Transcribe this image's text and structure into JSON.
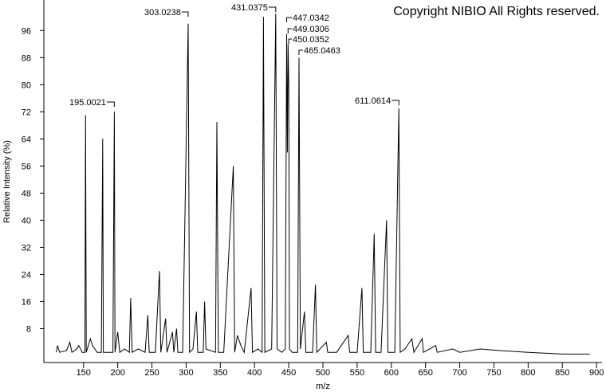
{
  "chart_data": {
    "type": "line",
    "title": "Copyright NIBIO All Rights reserved.",
    "x_label": "m/z",
    "y_label": "Relative Intensity (%)",
    "xlim": [
      92,
      908
    ],
    "ylim": [
      -2,
      105
    ],
    "xticks": [
      150,
      200,
      250,
      300,
      350,
      400,
      450,
      500,
      550,
      600,
      650,
      700,
      750,
      800,
      850,
      900
    ],
    "yticks": [
      8,
      16,
      24,
      32,
      40,
      48,
      56,
      64,
      72,
      80,
      88,
      96
    ],
    "color": "#000000",
    "peak_labels": [
      "195.0021",
      "303.0238",
      "431.0375",
      "447.0342",
      "449.0306",
      "450.0352",
      "465.0463",
      "611.0614"
    ],
    "x": [
      110,
      112,
      115,
      125,
      130,
      133,
      140,
      143,
      148,
      152,
      153,
      154,
      160,
      163,
      170,
      176,
      178,
      179,
      186,
      193,
      195,
      196,
      200,
      203,
      210,
      217,
      219,
      221,
      230,
      240,
      244,
      246,
      255,
      261,
      263,
      270,
      272,
      280,
      282,
      286,
      288,
      295,
      303,
      305,
      310,
      315,
      317,
      325,
      327,
      329,
      343,
      345,
      347,
      355,
      369,
      371,
      375,
      380,
      385,
      395,
      397,
      405,
      411,
      413,
      415,
      425,
      431,
      433,
      440,
      445,
      447,
      448,
      449,
      450,
      451,
      455,
      463,
      465,
      467,
      473,
      475,
      485,
      489,
      491,
      505,
      507,
      520,
      537,
      539,
      550,
      557,
      559,
      570,
      575,
      577,
      585,
      593,
      595,
      605,
      611,
      613,
      620,
      630,
      633,
      645,
      647,
      665,
      667,
      690,
      700,
      730,
      760,
      800,
      850,
      890
    ],
    "values": [
      1,
      3,
      1,
      1.5,
      4,
      1,
      2,
      3,
      1,
      1,
      71,
      1,
      5,
      3,
      1,
      1,
      64,
      1,
      1,
      1,
      72,
      1,
      7,
      1,
      2,
      1,
      17,
      1,
      2,
      1,
      12,
      1,
      1,
      25,
      1,
      11,
      1,
      7,
      1,
      8,
      1,
      1,
      98,
      1,
      2,
      13,
      1,
      1,
      16,
      2,
      1,
      69,
      1,
      1,
      56,
      1,
      6,
      3,
      1,
      20,
      1,
      2,
      1,
      100,
      1,
      2,
      101,
      2,
      1,
      2,
      95,
      60,
      92,
      80,
      2,
      1,
      1,
      88,
      2,
      13,
      1,
      1,
      21,
      1,
      4,
      1,
      1,
      6,
      1,
      1,
      20,
      1,
      1,
      36,
      1,
      1,
      40,
      1,
      1,
      73,
      1,
      2,
      5,
      1,
      5,
      1,
      3,
      1,
      2,
      1,
      2,
      1.5,
      1,
      0.5,
      0.5
    ]
  }
}
